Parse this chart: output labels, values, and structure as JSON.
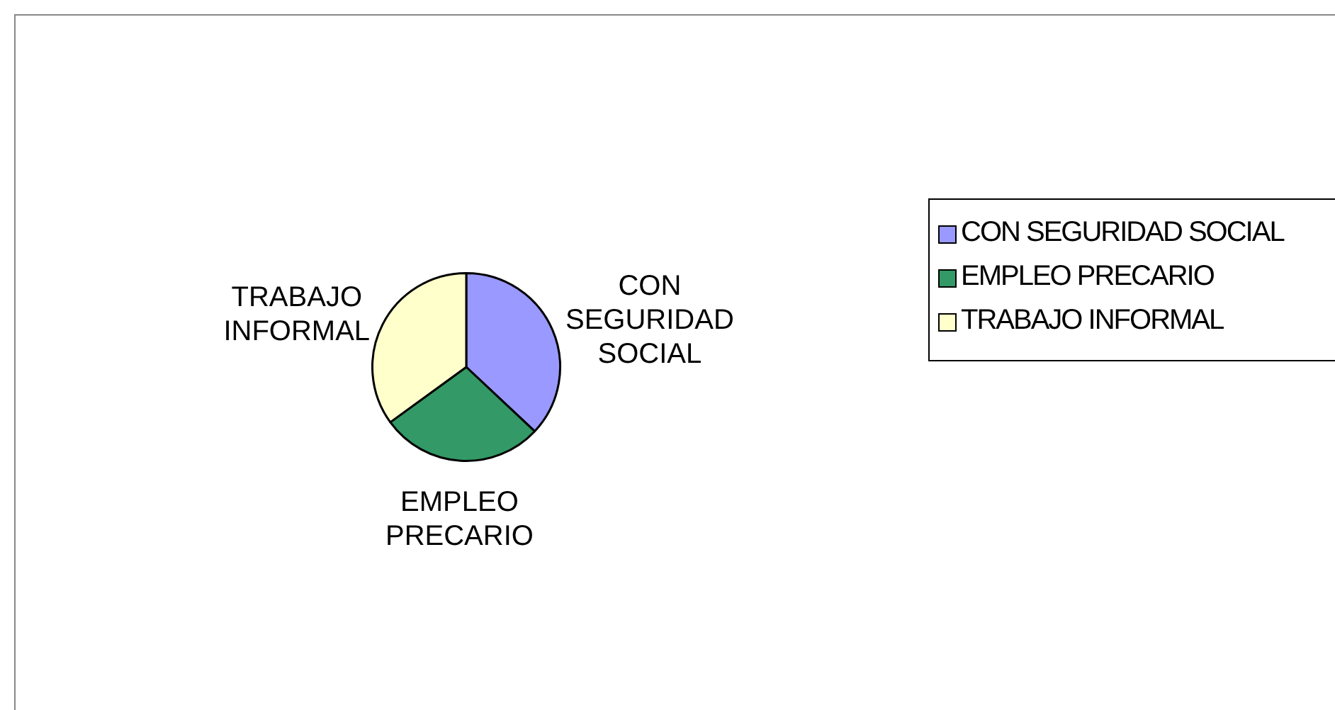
{
  "chart_data": {
    "type": "pie",
    "categories": [
      "CON SEGURIDAD SOCIAL",
      "EMPLEO PRECARIO",
      "TRABAJO INFORMAL"
    ],
    "values": [
      37,
      28,
      35
    ],
    "colors": [
      "#9999ff",
      "#339966",
      "#ffffcc"
    ],
    "legend": "right",
    "data_labels": false
  }
}
